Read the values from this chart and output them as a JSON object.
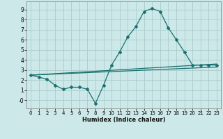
{
  "title": "",
  "xlabel": "Humidex (Indice chaleur)",
  "bg_color": "#cce8e8",
  "grid_color": "#aacccc",
  "line_color": "#1a7070",
  "xlim": [
    -0.5,
    23.5
  ],
  "ylim": [
    -0.8,
    9.8
  ],
  "xticks": [
    0,
    1,
    2,
    3,
    4,
    5,
    6,
    7,
    8,
    9,
    10,
    11,
    12,
    13,
    14,
    15,
    16,
    17,
    18,
    19,
    20,
    21,
    22,
    23
  ],
  "yticks": [
    0,
    1,
    2,
    3,
    4,
    5,
    6,
    7,
    8,
    9
  ],
  "line1_x": [
    0,
    1,
    2,
    3,
    4,
    5,
    6,
    7,
    8,
    9,
    10,
    11,
    12,
    13,
    14,
    15,
    16,
    17,
    18,
    19,
    20,
    21,
    22,
    23
  ],
  "line1_y": [
    2.5,
    2.3,
    2.1,
    1.5,
    1.1,
    1.3,
    1.3,
    1.1,
    -0.3,
    1.5,
    3.5,
    4.8,
    6.3,
    7.3,
    8.8,
    9.1,
    8.8,
    7.2,
    6.0,
    4.8,
    3.5,
    3.5,
    3.5,
    3.5
  ],
  "line2_x": [
    0,
    23
  ],
  "line2_y": [
    2.5,
    3.6
  ],
  "line3_x": [
    0,
    23
  ],
  "line3_y": [
    2.5,
    3.3
  ],
  "ylabel_ticks": [
    "-0",
    "1",
    "2",
    "3",
    "4",
    "5",
    "6",
    "7",
    "8",
    "9"
  ]
}
